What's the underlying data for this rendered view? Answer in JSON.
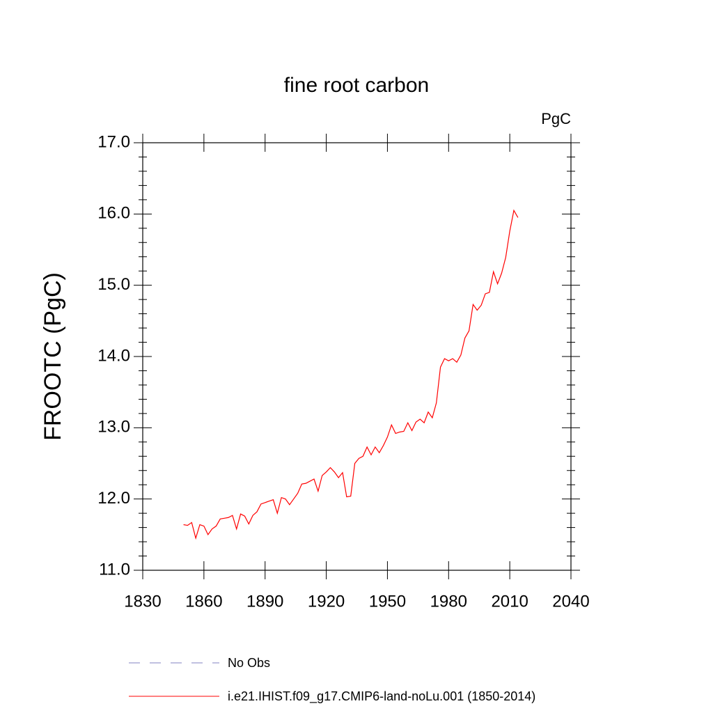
{
  "chart_data": {
    "type": "line",
    "title": "fine root carbon",
    "unit_label": "PgC",
    "ylabel": "FROOTC  (PgC)",
    "x": [
      1850,
      1852,
      1854,
      1856,
      1858,
      1860,
      1862,
      1864,
      1866,
      1868,
      1870,
      1872,
      1874,
      1876,
      1878,
      1880,
      1882,
      1884,
      1886,
      1888,
      1890,
      1892,
      1894,
      1896,
      1898,
      1900,
      1902,
      1904,
      1906,
      1908,
      1910,
      1912,
      1914,
      1916,
      1918,
      1920,
      1922,
      1924,
      1926,
      1928,
      1930,
      1932,
      1934,
      1936,
      1938,
      1940,
      1942,
      1944,
      1946,
      1948,
      1950,
      1952,
      1954,
      1956,
      1958,
      1960,
      1962,
      1964,
      1966,
      1968,
      1970,
      1972,
      1974,
      1976,
      1978,
      1980,
      1982,
      1984,
      1986,
      1988,
      1990,
      1992,
      1994,
      1996,
      1998,
      2000,
      2002,
      2004,
      2006,
      2008,
      2010,
      2012,
      2014
    ],
    "series": [
      {
        "name": "i.e21.IHIST.f09_g17.CMIP6-land-noLu.001 (1850-2014)",
        "color": "#ff0000",
        "values": [
          11.64,
          11.63,
          11.67,
          11.45,
          11.64,
          11.62,
          11.5,
          11.58,
          11.62,
          11.72,
          11.73,
          11.74,
          11.77,
          11.58,
          11.79,
          11.76,
          11.65,
          11.77,
          11.82,
          11.93,
          11.95,
          11.97,
          11.99,
          11.8,
          12.02,
          12.0,
          11.92,
          12.0,
          12.08,
          12.21,
          12.22,
          12.25,
          12.28,
          12.11,
          12.33,
          12.38,
          12.44,
          12.38,
          12.3,
          12.37,
          12.03,
          12.04,
          12.5,
          12.57,
          12.6,
          12.73,
          12.62,
          12.73,
          12.65,
          12.75,
          12.87,
          13.04,
          12.92,
          12.94,
          12.95,
          13.07,
          12.96,
          13.08,
          13.12,
          13.07,
          13.22,
          13.14,
          13.35,
          13.85,
          13.97,
          13.94,
          13.97,
          13.92,
          14.02,
          14.26,
          14.36,
          14.73,
          14.65,
          14.72,
          14.88,
          14.9,
          15.19,
          15.02,
          15.17,
          15.39,
          15.76,
          16.05,
          15.95
        ]
      }
    ],
    "obs": {
      "name": "No Obs",
      "color": "#8080c0",
      "dashed": true
    },
    "xlim": [
      1830,
      2040
    ],
    "xticks": [
      1830,
      1860,
      1890,
      1920,
      1950,
      1980,
      2010,
      2040
    ],
    "ylim": [
      11,
      17
    ],
    "yticks": [
      {
        "value": 11,
        "label": "11.0"
      },
      {
        "value": 12,
        "label": "12.0"
      },
      {
        "value": 13,
        "label": "13.0"
      },
      {
        "value": 14,
        "label": "14.0"
      },
      {
        "value": 15,
        "label": "15.0"
      },
      {
        "value": 16,
        "label": "16.0"
      },
      {
        "value": 17,
        "label": "17.0"
      }
    ],
    "y_minor_per_interval": 4,
    "grid": false
  }
}
